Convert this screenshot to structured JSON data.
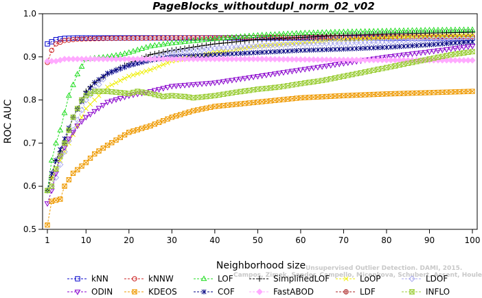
{
  "chart_data": {
    "type": "line",
    "title": "PageBlocks_withoutdupl_norm_02_v02",
    "xlabel": "Neighborhood size",
    "ylabel": "ROC AUC",
    "xlim": [
      1,
      100
    ],
    "ylim": [
      0.5,
      1.0
    ],
    "xticks": [
      1,
      10,
      20,
      30,
      40,
      50,
      60,
      70,
      80,
      90,
      100
    ],
    "yticks": [
      0.5,
      0.6,
      0.7,
      0.8,
      0.9,
      1.0
    ],
    "grid": false,
    "legend_position": "bottom",
    "watermark_lines": [
      "Unsupervised Outlier Detection. DAMI, 2015.",
      "Campos, Zimek, Sander, Campello, Micenkova, Schubert, Assent, Houle"
    ],
    "series": [
      {
        "name": "kNN",
        "color": "#0000cc",
        "marker": "square",
        "points": [
          [
            1,
            0.93
          ],
          [
            2,
            0.935
          ],
          [
            3,
            0.94
          ],
          [
            5,
            0.943
          ],
          [
            8,
            0.944
          ],
          [
            15,
            0.944
          ],
          [
            30,
            0.944
          ],
          [
            50,
            0.944
          ],
          [
            70,
            0.944
          ],
          [
            100,
            0.943
          ]
        ]
      },
      {
        "name": "kNNW",
        "color": "#cc2222",
        "marker": "circle",
        "points": [
          [
            1,
            0.887
          ],
          [
            2,
            0.915
          ],
          [
            3,
            0.93
          ],
          [
            5,
            0.938
          ],
          [
            8,
            0.941
          ],
          [
            15,
            0.943
          ],
          [
            30,
            0.944
          ],
          [
            50,
            0.945
          ],
          [
            70,
            0.946
          ],
          [
            100,
            0.947
          ]
        ]
      },
      {
        "name": "LOF",
        "color": "#22dd22",
        "marker": "triangle-up",
        "points": [
          [
            1,
            0.59
          ],
          [
            2,
            0.66
          ],
          [
            3,
            0.7
          ],
          [
            4,
            0.73
          ],
          [
            5,
            0.77
          ],
          [
            6,
            0.81
          ],
          [
            8,
            0.86
          ],
          [
            10,
            0.895
          ],
          [
            15,
            0.9
          ],
          [
            18,
            0.905
          ],
          [
            20,
            0.91
          ],
          [
            25,
            0.925
          ],
          [
            30,
            0.932
          ],
          [
            40,
            0.942
          ],
          [
            50,
            0.95
          ],
          [
            60,
            0.955
          ],
          [
            70,
            0.958
          ],
          [
            80,
            0.96
          ],
          [
            90,
            0.962
          ],
          [
            100,
            0.963
          ]
        ]
      },
      {
        "name": "SimplifiedLOF",
        "color": "#000000",
        "marker": "plus",
        "points": [
          [
            1,
            0.59
          ],
          [
            2,
            0.62
          ],
          [
            3,
            0.66
          ],
          [
            5,
            0.7
          ],
          [
            7,
            0.76
          ],
          [
            10,
            0.82
          ],
          [
            12,
            0.84
          ],
          [
            15,
            0.86
          ],
          [
            20,
            0.885
          ],
          [
            25,
            0.905
          ],
          [
            30,
            0.915
          ],
          [
            40,
            0.93
          ],
          [
            50,
            0.94
          ],
          [
            60,
            0.945
          ],
          [
            70,
            0.95
          ],
          [
            80,
            0.953
          ],
          [
            90,
            0.955
          ],
          [
            100,
            0.957
          ]
        ]
      },
      {
        "name": "LoOP",
        "color": "#eeee00",
        "marker": "x",
        "points": [
          [
            1,
            0.59
          ],
          [
            2,
            0.62
          ],
          [
            3,
            0.64
          ],
          [
            5,
            0.68
          ],
          [
            7,
            0.72
          ],
          [
            10,
            0.78
          ],
          [
            15,
            0.83
          ],
          [
            20,
            0.855
          ],
          [
            25,
            0.87
          ],
          [
            30,
            0.89
          ],
          [
            40,
            0.91
          ],
          [
            50,
            0.925
          ],
          [
            60,
            0.932
          ],
          [
            70,
            0.94
          ],
          [
            80,
            0.945
          ],
          [
            90,
            0.948
          ],
          [
            100,
            0.95
          ]
        ]
      },
      {
        "name": "LDOF",
        "color": "#aaaaee",
        "marker": "diamond",
        "points": [
          [
            1,
            0.59
          ],
          [
            2,
            0.6
          ],
          [
            3,
            0.62
          ],
          [
            5,
            0.68
          ],
          [
            7,
            0.73
          ],
          [
            10,
            0.8
          ],
          [
            15,
            0.86
          ],
          [
            20,
            0.88
          ],
          [
            25,
            0.895
          ],
          [
            30,
            0.91
          ],
          [
            40,
            0.92
          ],
          [
            50,
            0.925
          ],
          [
            60,
            0.93
          ],
          [
            70,
            0.932
          ],
          [
            80,
            0.935
          ],
          [
            90,
            0.94
          ],
          [
            100,
            0.94
          ]
        ]
      },
      {
        "name": "ODIN",
        "color": "#8800cc",
        "marker": "triangle-down",
        "points": [
          [
            1,
            0.56
          ],
          [
            2,
            0.59
          ],
          [
            3,
            0.63
          ],
          [
            4,
            0.67
          ],
          [
            6,
            0.71
          ],
          [
            8,
            0.74
          ],
          [
            10,
            0.76
          ],
          [
            15,
            0.795
          ],
          [
            20,
            0.81
          ],
          [
            25,
            0.82
          ],
          [
            30,
            0.832
          ],
          [
            40,
            0.84
          ],
          [
            50,
            0.855
          ],
          [
            60,
            0.87
          ],
          [
            70,
            0.885
          ],
          [
            80,
            0.9
          ],
          [
            90,
            0.912
          ],
          [
            100,
            0.925
          ]
        ]
      },
      {
        "name": "KDEOS",
        "color": "#ee9900",
        "marker": "square-cross",
        "points": [
          [
            1,
            0.51
          ],
          [
            2,
            0.565
          ],
          [
            4,
            0.57
          ],
          [
            5,
            0.6
          ],
          [
            7,
            0.63
          ],
          [
            10,
            0.655
          ],
          [
            12,
            0.675
          ],
          [
            15,
            0.695
          ],
          [
            20,
            0.725
          ],
          [
            25,
            0.74
          ],
          [
            30,
            0.76
          ],
          [
            35,
            0.775
          ],
          [
            40,
            0.785
          ],
          [
            45,
            0.79
          ],
          [
            50,
            0.795
          ],
          [
            55,
            0.8
          ],
          [
            60,
            0.805
          ],
          [
            70,
            0.81
          ],
          [
            80,
            0.814
          ],
          [
            90,
            0.817
          ],
          [
            100,
            0.82
          ]
        ]
      },
      {
        "name": "COF",
        "color": "#000080",
        "marker": "asterisk",
        "points": [
          [
            1,
            0.59
          ],
          [
            2,
            0.63
          ],
          [
            3,
            0.66
          ],
          [
            5,
            0.71
          ],
          [
            7,
            0.76
          ],
          [
            10,
            0.815
          ],
          [
            12,
            0.84
          ],
          [
            15,
            0.862
          ],
          [
            20,
            0.88
          ],
          [
            25,
            0.892
          ],
          [
            30,
            0.9
          ],
          [
            40,
            0.905
          ],
          [
            50,
            0.91
          ],
          [
            60,
            0.915
          ],
          [
            70,
            0.918
          ],
          [
            80,
            0.922
          ],
          [
            90,
            0.928
          ],
          [
            100,
            0.935
          ]
        ]
      },
      {
        "name": "FastABOD",
        "color": "#ffaaff",
        "marker": "diamond-filled",
        "points": [
          [
            1,
            0.89
          ],
          [
            3,
            0.89
          ],
          [
            5,
            0.895
          ],
          [
            10,
            0.895
          ],
          [
            20,
            0.895
          ],
          [
            30,
            0.895
          ],
          [
            50,
            0.895
          ],
          [
            70,
            0.893
          ],
          [
            90,
            0.892
          ],
          [
            100,
            0.892
          ]
        ]
      },
      {
        "name": "INFLO",
        "color": "#99cc33",
        "marker": "hourglass",
        "points": [
          [
            1,
            0.59
          ],
          [
            2,
            0.6
          ],
          [
            3,
            0.64
          ],
          [
            5,
            0.7
          ],
          [
            7,
            0.76
          ],
          [
            9,
            0.8
          ],
          [
            10,
            0.81
          ],
          [
            12,
            0.82
          ],
          [
            15,
            0.82
          ],
          [
            20,
            0.815
          ],
          [
            22,
            0.82
          ],
          [
            25,
            0.815
          ],
          [
            28,
            0.808
          ],
          [
            30,
            0.81
          ],
          [
            33,
            0.808
          ],
          [
            35,
            0.805
          ],
          [
            40,
            0.81
          ],
          [
            45,
            0.818
          ],
          [
            50,
            0.825
          ],
          [
            55,
            0.83
          ],
          [
            60,
            0.838
          ],
          [
            65,
            0.845
          ],
          [
            70,
            0.855
          ],
          [
            75,
            0.865
          ],
          [
            80,
            0.875
          ],
          [
            85,
            0.885
          ],
          [
            90,
            0.895
          ],
          [
            95,
            0.905
          ],
          [
            100,
            0.912
          ]
        ]
      }
    ],
    "legend_rows": [
      [
        "kNN",
        "kNNW",
        "LOF",
        "SimplifiedLOF",
        "LoOP",
        "LDOF"
      ],
      [
        "ODIN",
        "KDEOS",
        "COF",
        "FastABOD",
        "LDF",
        "INFLO"
      ]
    ],
    "legend_extra": [
      {
        "name": "LDF",
        "color": "#aa2222",
        "marker": "circle-plus"
      }
    ]
  }
}
